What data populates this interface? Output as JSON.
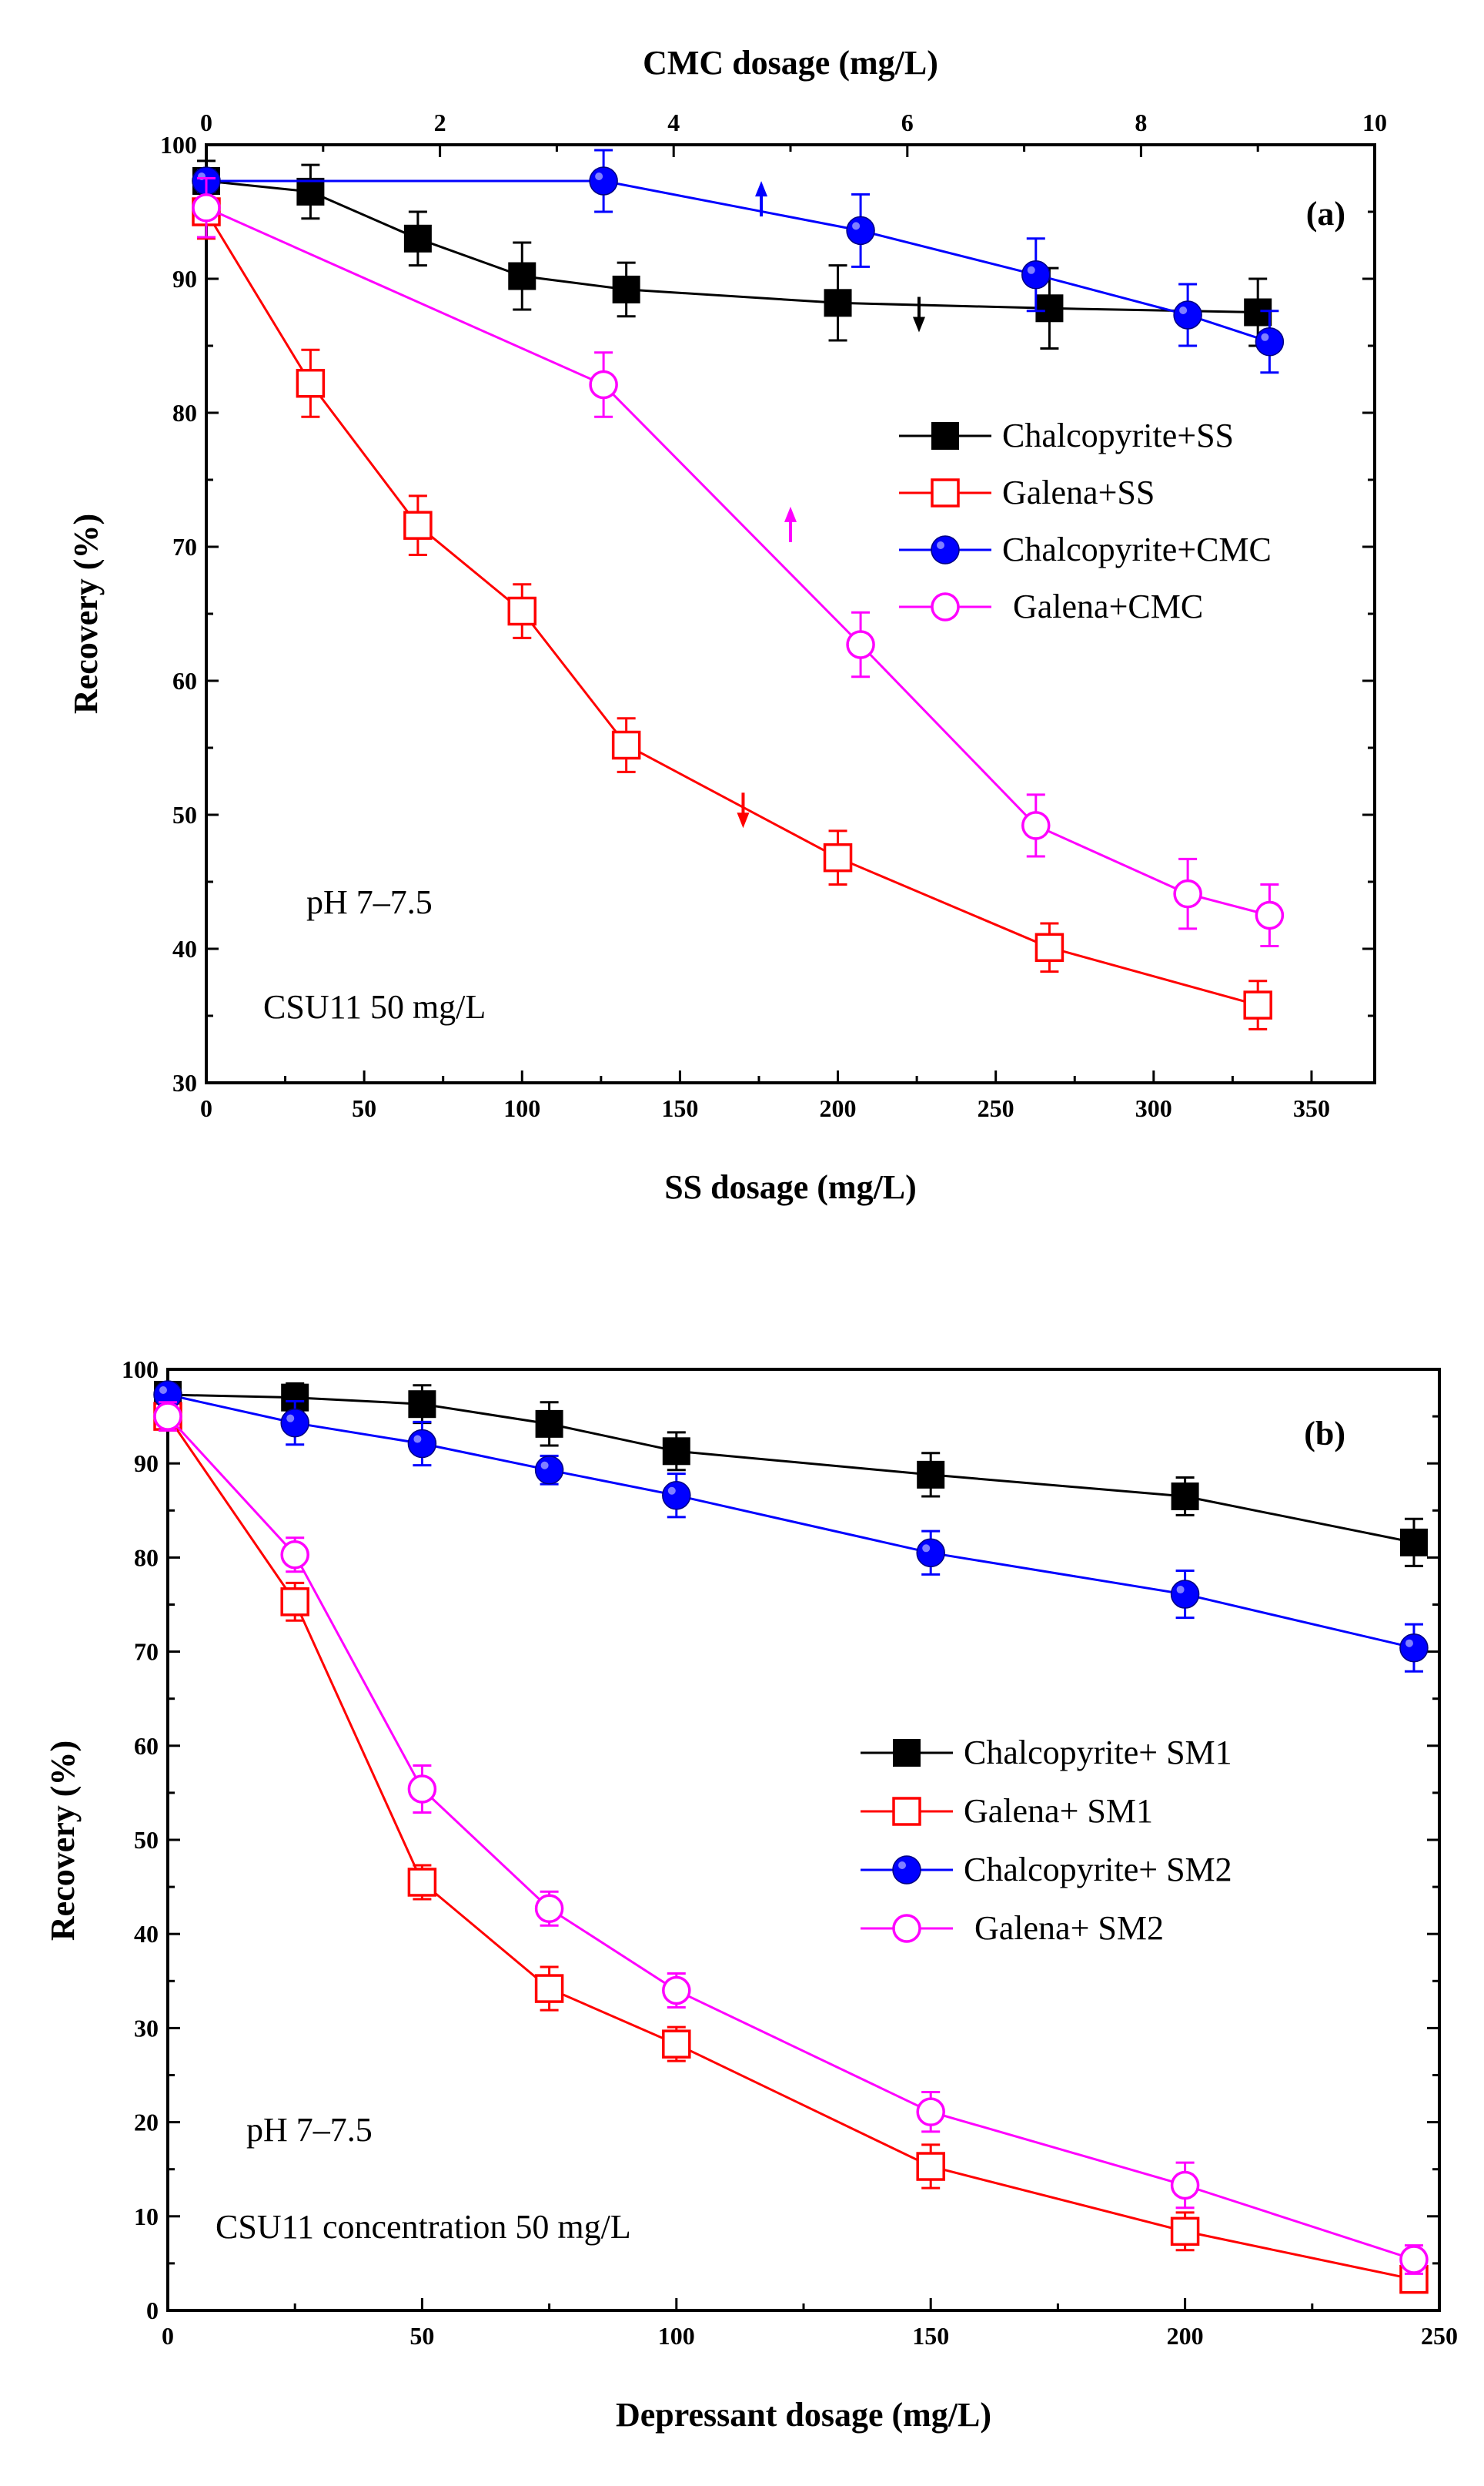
{
  "chart_data": [
    {
      "type": "line",
      "panel_label": "(a)",
      "xlabel": "SS dosage (mg/L)",
      "x_ticks": [
        "0",
        "50",
        "100",
        "150",
        "200",
        "250",
        "300",
        "350"
      ],
      "xlim": [
        0,
        370
      ],
      "x2label": "CMC dosage (mg/L)",
      "x2_ticks": [
        "0",
        "2",
        "4",
        "6",
        "8",
        "10"
      ],
      "x2lim": [
        0,
        10
      ],
      "ylabel": "Recovery (%)",
      "y_ticks": [
        "30",
        "40",
        "50",
        "60",
        "70",
        "80",
        "90",
        "100"
      ],
      "ylim": [
        30,
        100
      ],
      "annotations": [
        "pH 7–7.5",
        "CSU11 50 mg/L"
      ],
      "legend_position": "center-right",
      "series": [
        {
          "name": "Chalcopyrite+SS",
          "axis": "bottom",
          "color": "#000000",
          "marker": "square-filled",
          "x": [
            0,
            33,
            67,
            100,
            133,
            200,
            267,
            333
          ],
          "y": [
            97.3,
            96.5,
            93,
            90.2,
            89.2,
            88.2,
            87.8,
            87.5
          ],
          "err": [
            1.5,
            2,
            2,
            2.5,
            2,
            2.8,
            3,
            2.5
          ]
        },
        {
          "name": "Galena+SS",
          "axis": "bottom",
          "color": "#ff0000",
          "marker": "square-open",
          "x": [
            0,
            33,
            67,
            100,
            133,
            200,
            267,
            333
          ],
          "y": [
            95,
            82.2,
            71.6,
            65.2,
            55.2,
            46.8,
            40.1,
            35.8
          ],
          "err": [
            2,
            2.5,
            2.2,
            2,
            2,
            2,
            1.8,
            1.8
          ]
        },
        {
          "name": "Chalcopyrite+CMC",
          "axis": "top",
          "color": "#0000ff",
          "marker": "circle-filled",
          "x": [
            0,
            3.4,
            5.6,
            7.1,
            8.4,
            9.1
          ],
          "y": [
            97.3,
            97.3,
            93.6,
            90.3,
            87.3,
            85.3
          ],
          "err": [
            0.8,
            2.3,
            2.7,
            2.7,
            2.3,
            2.3
          ]
        },
        {
          "name": "Galena+CMC",
          "axis": "top",
          "color": "#ff00ff",
          "marker": "circle-open",
          "x": [
            0,
            3.4,
            5.6,
            7.1,
            8.4,
            9.1
          ],
          "y": [
            95.3,
            82.1,
            62.7,
            49.2,
            44.1,
            42.5
          ],
          "err": [
            2.2,
            2.4,
            2.4,
            2.3,
            2.6,
            2.3
          ]
        }
      ],
      "arrows": [
        {
          "color": "#0000ff",
          "x": 4.75,
          "axis": "top",
          "y": 95.8,
          "dir": "up"
        },
        {
          "color": "#000000",
          "x": 6.1,
          "axis": "top",
          "y": 87.5,
          "dir": "down"
        },
        {
          "color": "#ff00ff",
          "x": 185,
          "axis": "bottom",
          "y": 71.5,
          "dir": "up"
        },
        {
          "color": "#ff0000",
          "x": 170,
          "axis": "bottom",
          "y": 50.5,
          "dir": "down"
        }
      ]
    },
    {
      "type": "line",
      "panel_label": "(b)",
      "xlabel": "Depressant dosage (mg/L)",
      "x_ticks": [
        "0",
        "50",
        "100",
        "150",
        "200",
        "250"
      ],
      "xlim": [
        0,
        250
      ],
      "ylabel": "Recovery (%)",
      "y_ticks": [
        "0",
        "10",
        "20",
        "30",
        "40",
        "50",
        "60",
        "70",
        "80",
        "90",
        "100"
      ],
      "ylim": [
        0,
        100
      ],
      "annotations": [
        "pH 7–7.5",
        "CSU11 concentration 50 mg/L"
      ],
      "legend_position": "center-right",
      "series": [
        {
          "name": "Chalcopyrite+ SM1",
          "color": "#000000",
          "marker": "square-filled",
          "x": [
            0,
            25,
            50,
            75,
            100,
            150,
            200,
            245
          ],
          "y": [
            97.3,
            97,
            96.3,
            94.2,
            91.3,
            88.8,
            86.5,
            81.6
          ],
          "err": [
            1,
            1.5,
            2,
            2.3,
            2,
            2.3,
            2,
            2.5
          ]
        },
        {
          "name": "Galena+ SM1",
          "color": "#ff0000",
          "marker": "square-open",
          "x": [
            0,
            25,
            50,
            75,
            100,
            150,
            200,
            245
          ],
          "y": [
            95,
            75.3,
            45.5,
            34.2,
            28.3,
            15.3,
            8.4,
            3.3
          ],
          "err": [
            1.5,
            2,
            1.8,
            2.3,
            1.8,
            2.3,
            2,
            1
          ]
        },
        {
          "name": "Chalcopyrite+ SM2",
          "color": "#0000ff",
          "marker": "circle-filled",
          "x": [
            0,
            25,
            50,
            75,
            100,
            150,
            200,
            245
          ],
          "y": [
            97.3,
            94.3,
            92.1,
            89.3,
            86.6,
            80.5,
            76.1,
            70.4
          ],
          "err": [
            1,
            2.3,
            2.3,
            1.5,
            2.3,
            2.3,
            2.5,
            2.5
          ]
        },
        {
          "name": "Galena+ SM2",
          "color": "#ff00ff",
          "marker": "circle-open",
          "x": [
            0,
            25,
            50,
            75,
            100,
            150,
            200,
            245
          ],
          "y": [
            95,
            80.3,
            55.4,
            42.7,
            34,
            21.1,
            13.3,
            5.4
          ],
          "err": [
            1.5,
            1.8,
            2.5,
            1.8,
            1.8,
            2.1,
            2.4,
            1.5
          ]
        }
      ]
    }
  ]
}
